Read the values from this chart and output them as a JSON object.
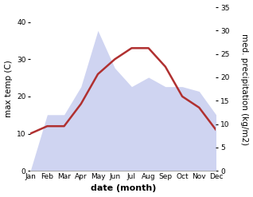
{
  "months": [
    "Jan",
    "Feb",
    "Mar",
    "Apr",
    "May",
    "Jun",
    "Jul",
    "Aug",
    "Sep",
    "Oct",
    "Nov",
    "Dec"
  ],
  "month_indices": [
    0,
    1,
    2,
    3,
    4,
    5,
    6,
    7,
    8,
    9,
    10,
    11
  ],
  "temp_max": [
    10,
    12,
    12,
    18,
    26,
    30,
    33,
    33,
    28,
    20,
    17,
    11
  ],
  "precipitation": [
    0,
    12,
    12,
    18,
    30,
    22,
    18,
    20,
    18,
    18,
    17,
    12
  ],
  "temp_color": "#b03030",
  "precip_fill_color": "#b0b8e8",
  "precip_fill_alpha": 0.6,
  "temp_ylim": [
    0,
    44
  ],
  "temp_yticks": [
    0,
    10,
    20,
    30,
    40
  ],
  "precip_ylim": [
    0,
    35
  ],
  "precip_yticks": [
    0,
    5,
    10,
    15,
    20,
    25,
    30,
    35
  ],
  "xlabel": "date (month)",
  "ylabel_left": "max temp (C)",
  "ylabel_right": "med. precipitation (kg/m2)",
  "line_width": 1.8,
  "xlabel_fontsize": 8,
  "ylabel_fontsize": 7.5,
  "tick_fontsize": 6.5
}
